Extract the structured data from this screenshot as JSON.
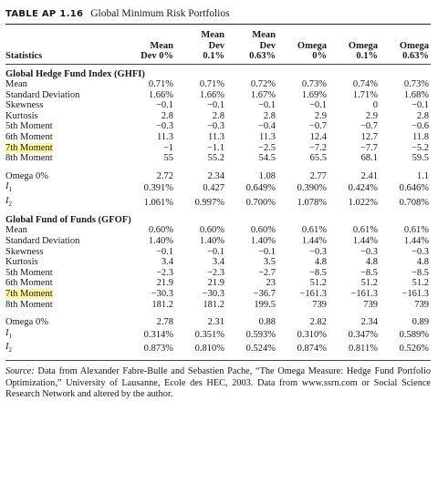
{
  "title": {
    "table_id": "TABLE AP 1.16",
    "caption": "Global Minimum Risk Portfolios"
  },
  "header": {
    "stat_label": "Statistics",
    "columns": [
      [
        "",
        "Mean",
        "Dev 0%"
      ],
      [
        "Mean",
        "Dev",
        "0.1%"
      ],
      [
        "Mean",
        "Dev",
        "0.63%"
      ],
      [
        "",
        "Omega",
        "0%"
      ],
      [
        "",
        "Omega",
        "0.1%"
      ],
      [
        "",
        "Omega",
        "0.63%"
      ]
    ]
  },
  "sections": [
    {
      "name": "Global Hedge Fund Index (GHFI)",
      "rows": [
        {
          "label": "Mean",
          "values": [
            "0.71%",
            "0.71%",
            "0.72%",
            "0.73%",
            "0.74%",
            "0.73%"
          ]
        },
        {
          "label": "Standard Deviation",
          "values": [
            "1.66%",
            "1.66%",
            "1.67%",
            "1.69%",
            "1.71%",
            "1.68%"
          ]
        },
        {
          "label": "Skewness",
          "values": [
            "−0.1",
            "−0.1",
            "−0.1",
            "−0.1",
            "0",
            "−0.1"
          ]
        },
        {
          "label": "Kurtosis",
          "values": [
            "2.8",
            "2.8",
            "2.8",
            "2.9",
            "2.9",
            "2.8"
          ]
        },
        {
          "label": "5th Moment",
          "values": [
            "−0.3",
            "−0.3",
            "−0.4",
            "−0.7",
            "−0.7",
            "−0.6"
          ]
        },
        {
          "label": "6th Moment",
          "values": [
            "11.3",
            "11.3",
            "11.3",
            "12.4",
            "12.7",
            "11.8"
          ]
        },
        {
          "label": "7th Moment",
          "highlight": true,
          "values": [
            "−1",
            "−1.1",
            "−2.5",
            "−7.2",
            "−7.7",
            "−5.2"
          ]
        },
        {
          "label": "8th Moment",
          "values": [
            "55",
            "55.2",
            "54.5",
            "65.5",
            "68.1",
            "59.5"
          ]
        }
      ],
      "omega_rows": [
        {
          "label": "Omega 0%",
          "values": [
            "2.72",
            "2.34",
            "1.08",
            "2.77",
            "2.41",
            "1.1"
          ]
        },
        {
          "label": "I",
          "sub": "1",
          "values": [
            "0.391%",
            "0.427",
            "0.649%",
            "0.390%",
            "0.424%",
            "0.646%"
          ]
        },
        {
          "label": "I",
          "sub": "2",
          "values": [
            "1.061%",
            "0.997%",
            "0.700%",
            "1.078%",
            "1.022%",
            "0.708%"
          ]
        }
      ]
    },
    {
      "name": "Global Fund of Funds (GFOF)",
      "rows": [
        {
          "label": "Mean",
          "values": [
            "0.60%",
            "0.60%",
            "0.60%",
            "0.61%",
            "0.61%",
            "0.61%"
          ]
        },
        {
          "label": "Standard Deviation",
          "values": [
            "1.40%",
            "1.40%",
            "1.40%",
            "1.44%",
            "1.44%",
            "1.44%"
          ]
        },
        {
          "label": "Skewness",
          "values": [
            "−0.1",
            "−0.1",
            "−0.1",
            "−0.3",
            "−0.3",
            "−0.3"
          ]
        },
        {
          "label": "Kurtosis",
          "values": [
            "3.4",
            "3.4",
            "3.5",
            "4.8",
            "4.8",
            "4.8"
          ]
        },
        {
          "label": "5th Moment",
          "values": [
            "−2.3",
            "−2.3",
            "−2.7",
            "−8.5",
            "−8.5",
            "−8.5"
          ]
        },
        {
          "label": "6th Moment",
          "values": [
            "21.9",
            "21.9",
            "23",
            "51.2",
            "51.2",
            "51.2"
          ]
        },
        {
          "label": "7th Moment",
          "highlight": true,
          "values": [
            "−30.3",
            "−30.3",
            "−36.7",
            "−161.3",
            "−161.3",
            "−161.3"
          ]
        },
        {
          "label": "8th Moment",
          "values": [
            "181.2",
            "181.2",
            "199.5",
            "739",
            "739",
            "739"
          ]
        }
      ],
      "omega_rows": [
        {
          "label": "Omega 0%",
          "values": [
            "2.78",
            "2.31",
            "0.88",
            "2.82",
            "2.34",
            "0.89"
          ]
        },
        {
          "label": "I",
          "sub": "1",
          "values": [
            "0.314%",
            "0.351%",
            "0.593%",
            "0.310%",
            "0.347%",
            "0.589%"
          ]
        },
        {
          "label": "I",
          "sub": "2",
          "values": [
            "0.873%",
            "0.810%",
            "0.524%",
            "0.874%",
            "0.811%",
            "0.526%"
          ]
        }
      ]
    }
  ],
  "source": {
    "label": "Source:",
    "text": "Data from Alexander Fabre-Bulle and Sebastien Pache, “The Omega Measure: Hedge Fund Portfolio Optimization,” University of Lausanne, Ecole des HEC, 2003. Data from www.ssrn.com or Social Science Research Network and altered by the author."
  },
  "colors": {
    "highlight": "#fff59a",
    "text": "#1a1a1a"
  }
}
